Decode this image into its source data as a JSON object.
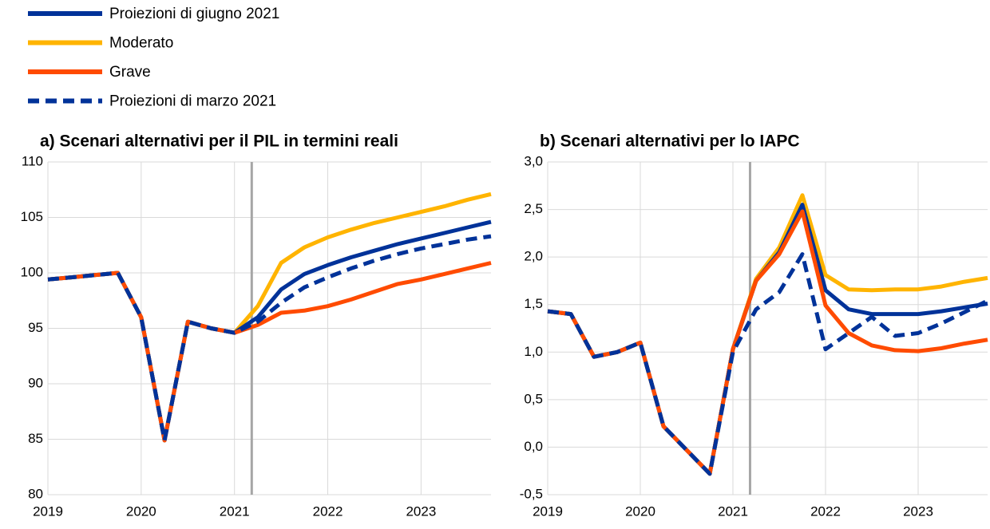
{
  "chart_data": [
    {
      "type": "line",
      "title": "a) Scenari alternativi per il PIL in termini reali",
      "categories": [
        "2019",
        null,
        null,
        null,
        "2020",
        null,
        null,
        null,
        "2021",
        null,
        null,
        null,
        "2022",
        null,
        null,
        null,
        "2023",
        null,
        null,
        null
      ],
      "series": [
        {
          "name": "Proiezioni di giugno 2021",
          "color": "#003299",
          "dash": false,
          "values": [
            99.4,
            99.6,
            99.8,
            100.0,
            96.0,
            84.9,
            95.6,
            95.0,
            94.6,
            96.0,
            98.5,
            99.9,
            100.7,
            101.4,
            102.0,
            102.6,
            103.1,
            103.6,
            104.1,
            104.6
          ]
        },
        {
          "name": "Moderato",
          "color": "#ffb400",
          "dash": false,
          "values": [
            99.4,
            99.6,
            99.8,
            100.0,
            96.0,
            84.9,
            95.6,
            95.0,
            94.6,
            97.0,
            100.9,
            102.3,
            103.2,
            103.9,
            104.5,
            105.0,
            105.5,
            106.0,
            106.6,
            107.1
          ]
        },
        {
          "name": "Grave",
          "color": "#ff4b00",
          "dash": false,
          "values": [
            99.4,
            99.6,
            99.8,
            100.0,
            96.0,
            84.9,
            95.6,
            95.0,
            94.6,
            95.3,
            96.4,
            96.6,
            97.0,
            97.6,
            98.3,
            99.0,
            99.4,
            99.9,
            100.4,
            100.9
          ]
        },
        {
          "name": "Proiezioni di marzo 2021",
          "color": "#003299",
          "dash": true,
          "values": [
            99.4,
            99.6,
            99.8,
            100.0,
            96.0,
            84.9,
            95.6,
            95.0,
            94.6,
            95.6,
            97.3,
            98.7,
            99.6,
            100.4,
            101.1,
            101.7,
            102.2,
            102.6,
            103.0,
            103.3
          ]
        }
      ],
      "ylim": [
        80,
        110
      ],
      "yticks": [
        80,
        85,
        90,
        95,
        100,
        105,
        110
      ],
      "grid": true
    },
    {
      "type": "line",
      "title": "b) Scenari alternativi per lo IAPC",
      "categories": [
        "2019",
        null,
        null,
        null,
        "2020",
        null,
        null,
        null,
        "2021",
        null,
        null,
        null,
        "2022",
        null,
        null,
        null,
        "2023",
        null,
        null,
        null
      ],
      "series": [
        {
          "name": "Proiezioni di giugno 2021",
          "color": "#003299",
          "dash": false,
          "values": [
            1.43,
            1.4,
            0.95,
            1.0,
            1.1,
            0.22,
            -0.03,
            -0.28,
            1.03,
            1.75,
            2.05,
            2.55,
            1.65,
            1.45,
            1.4,
            1.4,
            1.4,
            1.43,
            1.47,
            1.51
          ]
        },
        {
          "name": "Moderato",
          "color": "#ffb400",
          "dash": false,
          "values": [
            1.43,
            1.4,
            0.95,
            1.0,
            1.1,
            0.22,
            -0.03,
            -0.28,
            1.03,
            1.77,
            2.1,
            2.65,
            1.81,
            1.66,
            1.65,
            1.66,
            1.66,
            1.69,
            1.74,
            1.78
          ]
        },
        {
          "name": "Grave",
          "color": "#ff4b00",
          "dash": false,
          "values": [
            1.43,
            1.4,
            0.95,
            1.0,
            1.1,
            0.22,
            -0.03,
            -0.28,
            1.03,
            1.75,
            2.03,
            2.48,
            1.49,
            1.2,
            1.07,
            1.02,
            1.01,
            1.04,
            1.09,
            1.13
          ]
        },
        {
          "name": "Proiezioni di marzo 2021",
          "color": "#003299",
          "dash": true,
          "values": [
            1.43,
            1.4,
            0.95,
            1.0,
            1.1,
            0.22,
            -0.03,
            -0.28,
            1.0,
            1.45,
            1.63,
            2.03,
            1.03,
            1.2,
            1.37,
            1.17,
            1.2,
            1.3,
            1.42,
            1.54
          ]
        }
      ],
      "ylim": [
        -0.5,
        3.0
      ],
      "yticks": [
        {
          "value": -0.5,
          "label": "-0,5"
        },
        {
          "value": 0,
          "label": "0,0"
        },
        {
          "value": 0.5,
          "label": "0,5"
        },
        {
          "value": 1,
          "label": "1,0"
        },
        {
          "value": 1.5,
          "label": "1,5"
        },
        {
          "value": 2,
          "label": "2,0"
        },
        {
          "value": 2.5,
          "label": "2,5"
        },
        {
          "value": 3,
          "label": "3,0"
        }
      ],
      "grid": true
    }
  ]
}
